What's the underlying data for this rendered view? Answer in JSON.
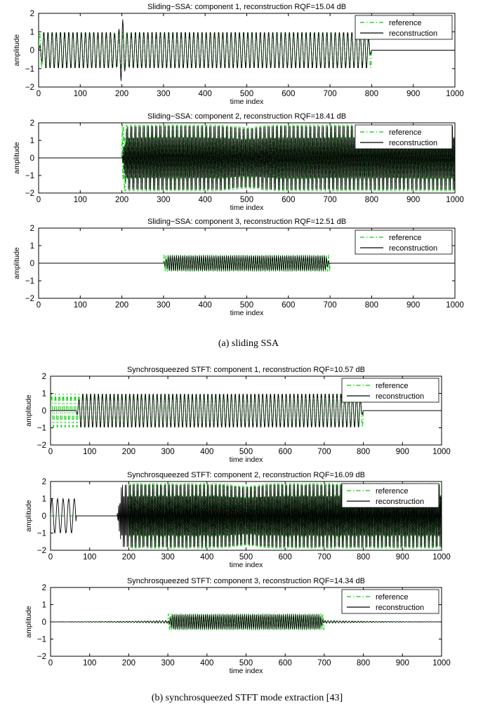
{
  "chart_data": [
    {
      "type": "line",
      "group": "(a) sliding SSA",
      "title": "Sliding−SSA: component 1, reconstruction RQF=15.04 dB",
      "xlabel": "time index",
      "ylabel": "amplitude",
      "xlim": [
        0,
        1000
      ],
      "ylim": [
        -2,
        2
      ],
      "xticks": [
        "0",
        "100",
        "200",
        "300",
        "400",
        "500",
        "600",
        "700",
        "800",
        "900",
        "1000"
      ],
      "yticks": [
        "−2",
        "−1",
        "0",
        "1",
        "2"
      ],
      "legend": [
        "reference",
        "reconstruction"
      ],
      "legend_position": "top-right",
      "series": [
        {
          "name": "reference",
          "color": "#00cc00",
          "style": "dash-dot",
          "signal": {
            "start": 0,
            "end": 800,
            "amplitude": 1.0,
            "cycles_per_sample": 0.1
          }
        },
        {
          "name": "reconstruction",
          "color": "#000000",
          "style": "solid",
          "signal": {
            "start": 0,
            "end": 800,
            "amplitude": 1.0,
            "cycles_per_sample": 0.1,
            "transient_at": 200
          }
        }
      ]
    },
    {
      "type": "line",
      "group": "(a) sliding SSA",
      "title": "Sliding−SSA: component 2, reconstruction RQF=18.41 dB",
      "xlabel": "time index",
      "ylabel": "amplitude",
      "xlim": [
        0,
        1000
      ],
      "ylim": [
        -2,
        2
      ],
      "xticks": [
        "0",
        "100",
        "200",
        "300",
        "400",
        "500",
        "600",
        "700",
        "800",
        "900",
        "1000"
      ],
      "yticks": [
        "−2",
        "−1",
        "0",
        "1",
        "2"
      ],
      "legend": [
        "reference",
        "reconstruction"
      ],
      "legend_position": "top-right",
      "series": [
        {
          "name": "reference",
          "color": "#00cc00",
          "style": "dash-dot",
          "signal": {
            "start": 200,
            "end": 1000,
            "amplitude": 2.0,
            "cycles_per_sample": 0.3
          }
        },
        {
          "name": "reconstruction",
          "color": "#000000",
          "style": "solid",
          "signal": {
            "start": 200,
            "end": 1000,
            "amplitude": 1.9,
            "cycles_per_sample": 0.3
          }
        }
      ]
    },
    {
      "type": "line",
      "group": "(a) sliding SSA",
      "title": "Sliding−SSA: component 3, reconstruction RQF=12.51 dB",
      "xlabel": "time index",
      "ylabel": "amplitude",
      "xlim": [
        0,
        1000
      ],
      "ylim": [
        -2,
        2
      ],
      "xticks": [
        "0",
        "100",
        "200",
        "300",
        "400",
        "500",
        "600",
        "700",
        "800",
        "900",
        "1000"
      ],
      "yticks": [
        "−2",
        "−1",
        "0",
        "1",
        "2"
      ],
      "legend": [
        "reference",
        "reconstruction"
      ],
      "legend_position": "top-right",
      "series": [
        {
          "name": "reference",
          "color": "#00cc00",
          "style": "dash-dot",
          "signal": {
            "start": 300,
            "end": 700,
            "amplitude": 0.5,
            "cycles_per_sample": 0.2
          }
        },
        {
          "name": "reconstruction",
          "color": "#000000",
          "style": "solid",
          "signal": {
            "start": 300,
            "end": 700,
            "amplitude": 0.45,
            "cycles_per_sample": 0.2
          }
        }
      ]
    },
    {
      "type": "line",
      "group": "(b) synchrosqueezed STFT mode extraction [43]",
      "title": "Synchrosqueezed STFT: component 1, reconstruction RQF=10.57 dB",
      "xlabel": "time index",
      "ylabel": "amplitude",
      "xlim": [
        0,
        1000
      ],
      "ylim": [
        -2,
        2
      ],
      "xticks": [
        "0",
        "100",
        "200",
        "300",
        "400",
        "500",
        "600",
        "700",
        "800",
        "900",
        "1000"
      ],
      "yticks": [
        "−2",
        "−1",
        "0",
        "1",
        "2"
      ],
      "legend": [
        "reference",
        "reconstruction"
      ],
      "legend_position": "top-right",
      "series": [
        {
          "name": "reference",
          "color": "#00cc00",
          "style": "dash-dot",
          "signal": {
            "start": 0,
            "end": 800,
            "amplitude": 1.0,
            "cycles_per_sample": 0.1
          }
        },
        {
          "name": "reconstruction",
          "color": "#000000",
          "style": "solid",
          "signal": {
            "start": 65,
            "end": 800,
            "amplitude": 1.0,
            "cycles_per_sample": 0.1
          }
        }
      ]
    },
    {
      "type": "line",
      "group": "(b) synchrosqueezed STFT mode extraction [43]",
      "title": "Synchrosqueezed STFT: component 2, reconstruction RQF=16.09 dB",
      "xlabel": "time index",
      "ylabel": "amplitude",
      "xlim": [
        0,
        1000
      ],
      "ylim": [
        -2,
        2
      ],
      "xticks": [
        "0",
        "100",
        "200",
        "300",
        "400",
        "500",
        "600",
        "700",
        "800",
        "900",
        "1000"
      ],
      "yticks": [
        "−2",
        "−1",
        "0",
        "1",
        "2"
      ],
      "legend": [
        "reference",
        "reconstruction"
      ],
      "legend_position": "top-right",
      "series": [
        {
          "name": "reference",
          "color": "#00cc00",
          "style": "dash-dot",
          "signal": {
            "start": 200,
            "end": 1000,
            "amplitude": 2.0,
            "cycles_per_sample": 0.3
          }
        },
        {
          "name": "reconstruction",
          "color": "#000000",
          "style": "solid",
          "signal": {
            "start": 170,
            "end": 1000,
            "amplitude": 1.9,
            "cycles_per_sample": 0.3,
            "early_burst": [
              0,
              65,
              1.0
            ]
          }
        }
      ]
    },
    {
      "type": "line",
      "group": "(b) synchrosqueezed STFT mode extraction [43]",
      "title": "Synchrosqueezed STFT: component 3, reconstruction RQF=14.34 dB",
      "xlabel": "time index",
      "ylabel": "amplitude",
      "xlim": [
        0,
        1000
      ],
      "ylim": [
        -2,
        2
      ],
      "xticks": [
        "0",
        "100",
        "200",
        "300",
        "400",
        "500",
        "600",
        "700",
        "800",
        "900",
        "1000"
      ],
      "yticks": [
        "−2",
        "−1",
        "0",
        "1",
        "2"
      ],
      "legend": [
        "reference",
        "reconstruction"
      ],
      "legend_position": "top-right",
      "series": [
        {
          "name": "reference",
          "color": "#00cc00",
          "style": "dash-dot",
          "signal": {
            "start": 300,
            "end": 700,
            "amplitude": 0.5,
            "cycles_per_sample": 0.2
          }
        },
        {
          "name": "reconstruction",
          "color": "#000000",
          "style": "solid",
          "signal": {
            "start": 300,
            "end": 700,
            "amplitude": 0.45,
            "cycles_per_sample": 0.2,
            "leakage": 0.08
          }
        }
      ]
    }
  ],
  "captions": {
    "a": "(a) sliding SSA",
    "b": "(b) synchrosqueezed STFT mode extraction [43]"
  }
}
